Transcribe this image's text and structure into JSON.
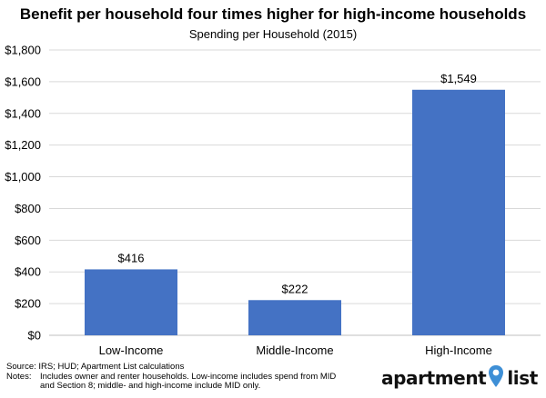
{
  "chart_data": {
    "type": "bar",
    "title": "Benefit per household four times higher for high-income households",
    "subtitle": "Spending per Household (2015)",
    "categories": [
      "Low-Income",
      "Middle-Income",
      "High-Income"
    ],
    "values": [
      416,
      222,
      1549
    ],
    "data_labels": [
      "$416",
      "$222",
      "$1,549"
    ],
    "ylim": [
      0,
      1800
    ],
    "yticks": [
      0,
      200,
      400,
      600,
      800,
      1000,
      1200,
      1400,
      1600,
      1800
    ],
    "ytick_labels": [
      "$0",
      "$200",
      "$400",
      "$600",
      "$800",
      "$1,000",
      "$1,200",
      "$1,400",
      "$1,600",
      "$1,800"
    ],
    "xlabel": "",
    "ylabel": "",
    "grid": "horizontal",
    "bar_color": "#4472C4",
    "grid_color": "#D9D9D9"
  },
  "footer": {
    "source": "Source: IRS; HUD; Apartment List calculations",
    "notes_label": "Notes:",
    "notes_text": "Includes owner and renter households. Low-income includes spend from MID and Section 8; middle- and high-income include MID only."
  },
  "logo": {
    "text_left": "apartment",
    "text_right": "list",
    "pin_color": "#3E8FD6"
  }
}
